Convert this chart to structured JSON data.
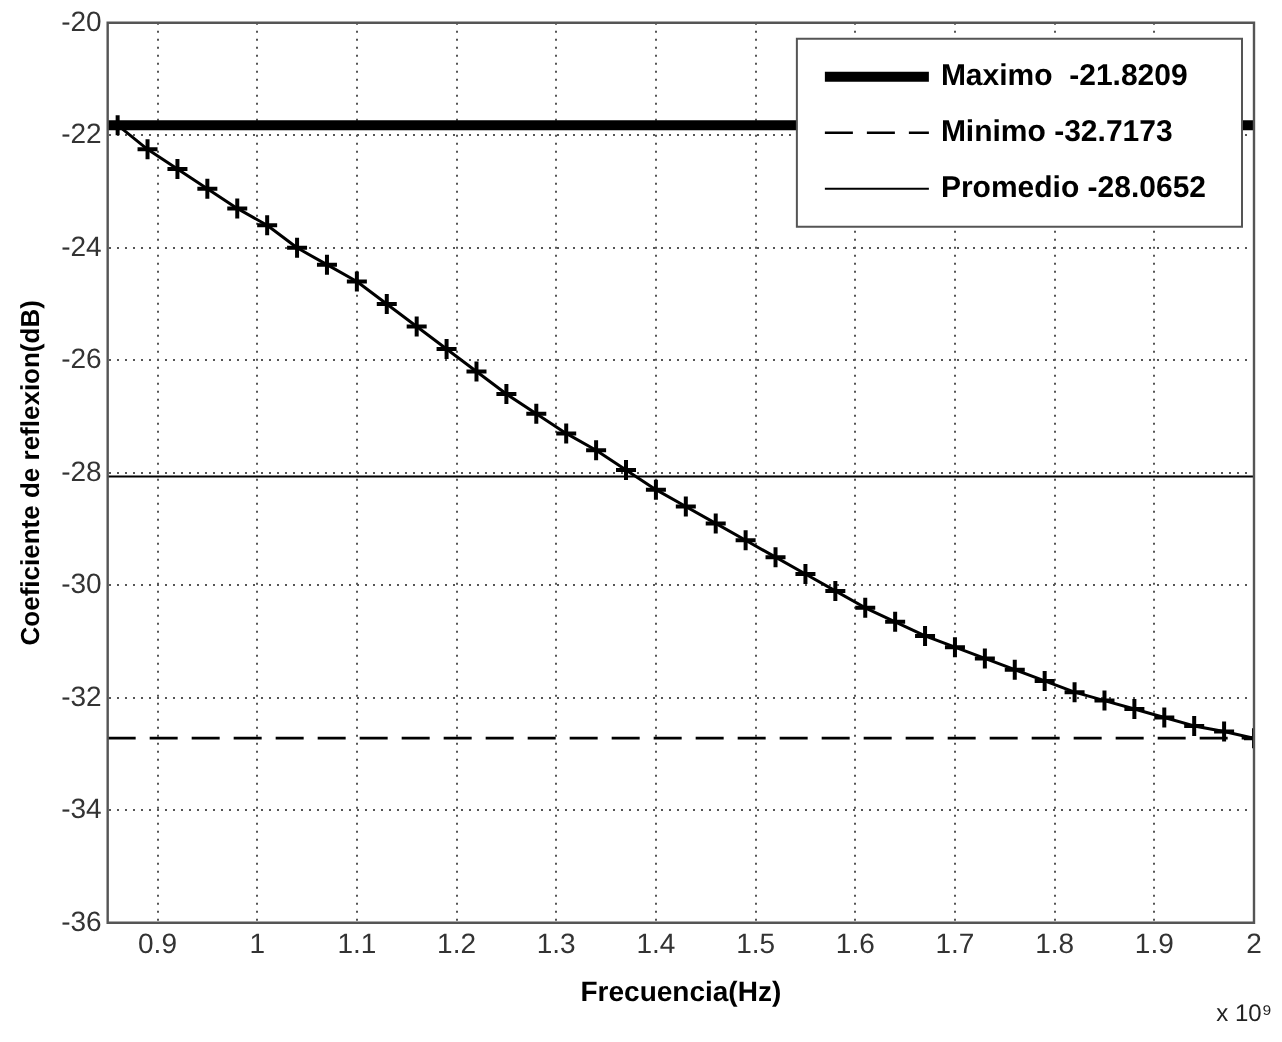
{
  "chart_data": {
    "type": "line",
    "xlabel": "Frecuencia(Hz)",
    "ylabel": "Coeficiente de reflexion(dB)",
    "annotations": [
      "x 10⁹"
    ],
    "x": [
      0.86,
      0.89,
      0.92,
      0.95,
      0.98,
      1.01,
      1.04,
      1.07,
      1.1,
      1.13,
      1.16,
      1.19,
      1.22,
      1.25,
      1.28,
      1.31,
      1.34,
      1.37,
      1.4,
      1.43,
      1.46,
      1.49,
      1.52,
      1.55,
      1.58,
      1.61,
      1.64,
      1.67,
      1.7,
      1.73,
      1.76,
      1.79,
      1.82,
      1.85,
      1.88,
      1.91,
      1.94,
      1.97,
      2.0
    ],
    "series": [
      {
        "color": "#000000",
        "values": [
          -21.82,
          -22.25,
          -22.6,
          -22.95,
          -23.3,
          -23.6,
          -24.0,
          -24.3,
          -24.6,
          -25.0,
          -25.4,
          -25.8,
          -26.2,
          -26.6,
          -26.95,
          -27.3,
          -27.6,
          -27.95,
          -28.3,
          -28.6,
          -28.9,
          -29.2,
          -29.5,
          -29.8,
          -30.1,
          -30.4,
          -30.65,
          -30.9,
          -31.1,
          -31.3,
          -31.5,
          -31.7,
          -31.9,
          -32.05,
          -32.2,
          -32.35,
          -32.5,
          -32.6,
          -32.72
        ]
      }
    ],
    "marker": "cross",
    "line_style": "solid",
    "xlim": [
      0.85,
      2
    ],
    "xticks": [
      0.9,
      1,
      1.1,
      1.2,
      1.3,
      1.4,
      1.5,
      1.6,
      1.7,
      1.8,
      1.9,
      2
    ],
    "ylim": [
      -36,
      -20
    ],
    "yticks": [
      -36,
      -34,
      -32,
      -30,
      -28,
      -26,
      -24,
      -22,
      -20
    ],
    "ref_lines": [
      {
        "axis": "y",
        "value": -21.8209,
        "label": "Maximo  -21.8209",
        "color": "#000000",
        "line_style": "solid"
      },
      {
        "axis": "y",
        "value": -32.7173,
        "label": "Minimo -32.7173",
        "color": "#000000",
        "line_style": "dashed"
      },
      {
        "axis": "y",
        "value": -28.0652,
        "label": "Promedio -28.0652",
        "color": "#000000",
        "line_style": "solid"
      }
    ],
    "grid": true,
    "legend": "top right"
  }
}
